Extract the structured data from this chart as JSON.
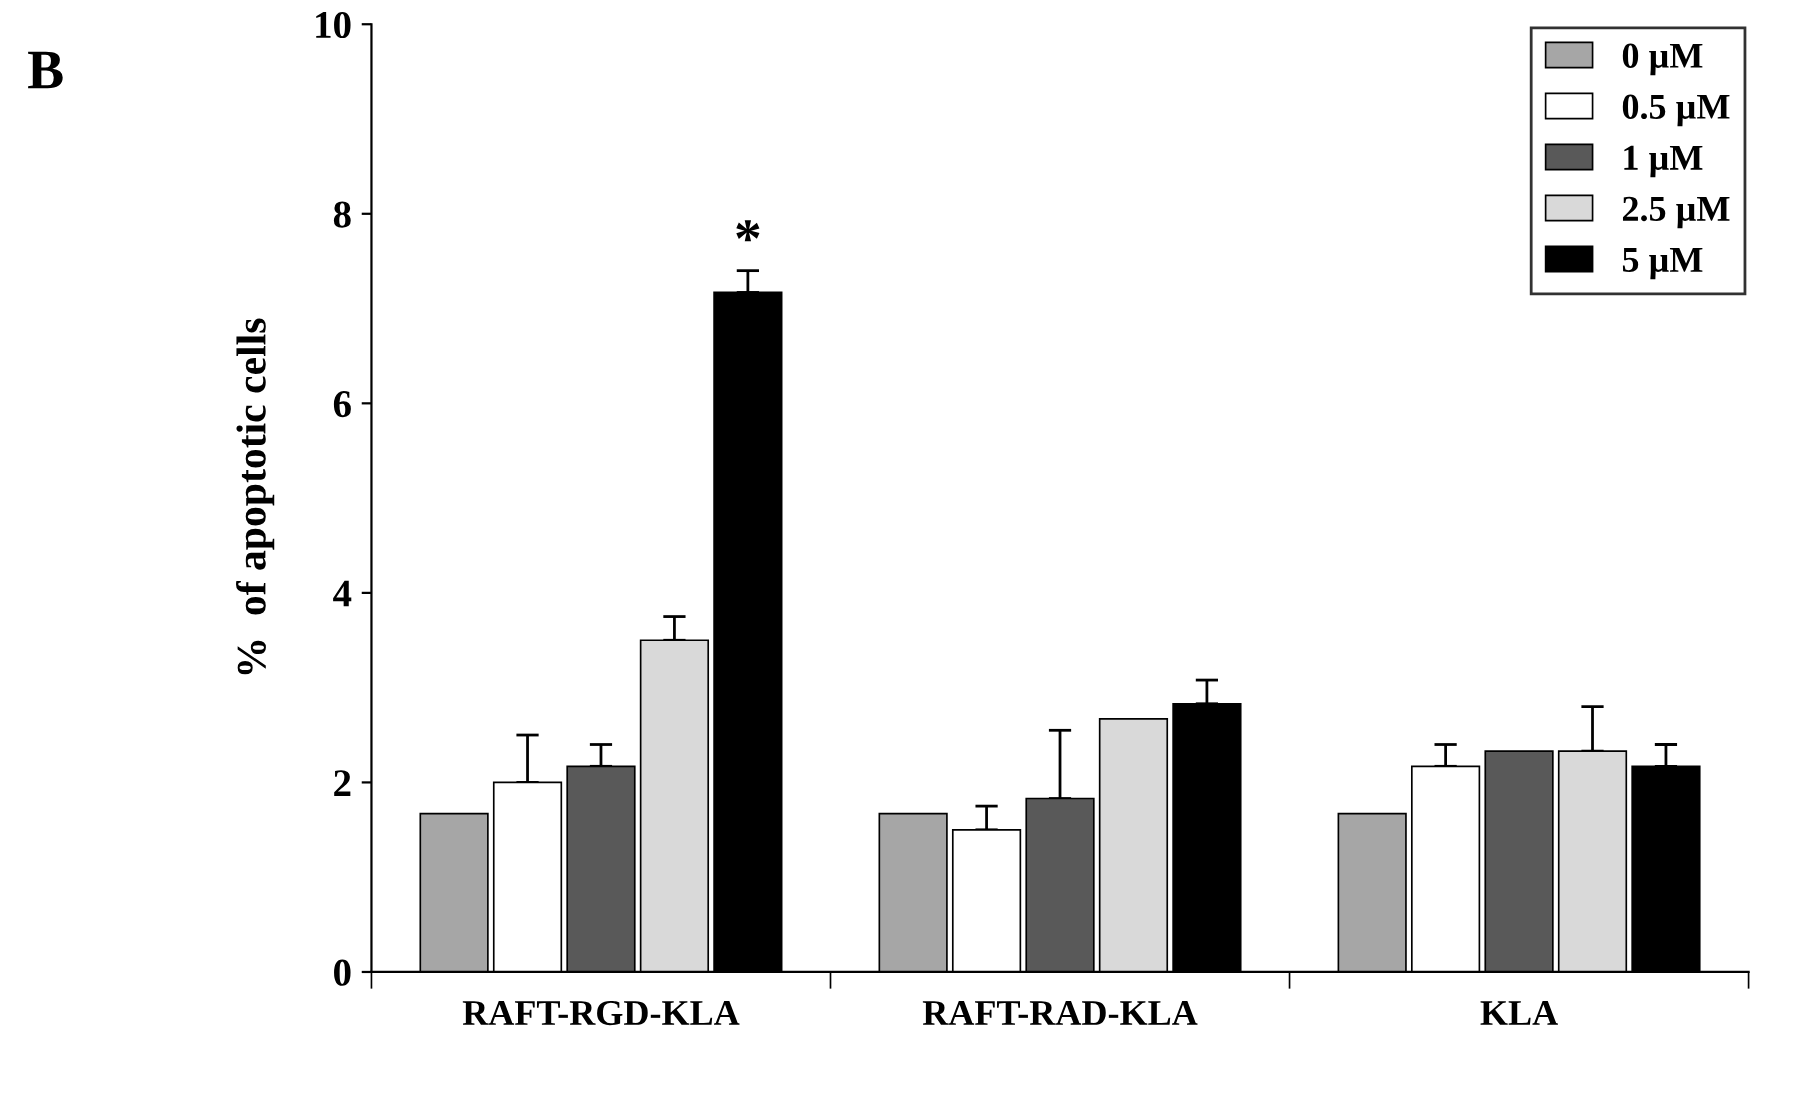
{
  "chart_data": {
    "type": "bar",
    "ylabel": "%  of apoptotic cells",
    "categories": [
      "RAFT-RGD-KLA",
      "RAFT-RAD-KLA",
      "KLA"
    ],
    "series": [
      {
        "name": "0 µM",
        "color": "#a6a6a6",
        "values": [
          1.67,
          1.67,
          1.67
        ],
        "errors": [
          null,
          null,
          null
        ]
      },
      {
        "name": "0.5 µM",
        "color": "#ffffff",
        "values": [
          2.0,
          1.5,
          2.17
        ],
        "errors": [
          0.5,
          0.25,
          0.23
        ]
      },
      {
        "name": "1 µM",
        "color": "#595959",
        "values": [
          2.17,
          1.83,
          2.33
        ],
        "errors": [
          0.23,
          0.72,
          null
        ]
      },
      {
        "name": "2.5 µM",
        "color": "#d9d9d9",
        "values": [
          3.5,
          2.67,
          2.33
        ],
        "errors": [
          0.25,
          null,
          0.47
        ]
      },
      {
        "name": "5 µM",
        "color": "#000000",
        "values": [
          7.17,
          2.83,
          2.17
        ],
        "errors": [
          0.23,
          0.25,
          0.23
        ]
      }
    ],
    "annotations": [
      "B",
      "*"
    ],
    "ylim": [
      0,
      10
    ],
    "yticks": [
      0,
      2,
      4,
      6,
      8,
      10
    ],
    "grid": false,
    "legend": "top right"
  }
}
